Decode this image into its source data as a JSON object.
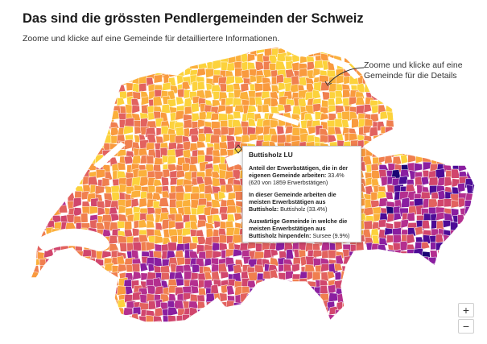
{
  "header": {
    "title": "Das sind die grössten Pendlergemeinden der Schweiz",
    "subtitle": "Zoome und klicke auf eine Gemeinde für detailliertere Informationen."
  },
  "annotation": {
    "line1": "Zoome und klicke auf eine",
    "line2": "Gemeinde für die Details"
  },
  "tooltip": {
    "title": "Buttisholz LU",
    "row1_label": "Anteil der Erwerbstätigen, die in der eigenen Gemeinde arbeiten:",
    "row1_value": " 33.4% (620 von 1859 Erwerbstätigen)",
    "row2_label": "In dieser Gemeinde arbeiten die meisten Erwerbstätigen aus Buttisholz:",
    "row2_value": " Buttisholz (33.4%)",
    "row3_label": "Auswärtige Gemeinde in welche die meisten Erwerbstätigen aus Buttisholz hinpendeln:",
    "row3_value": " Sursee (9.9%)"
  },
  "controls": {
    "zoom_in": "+",
    "zoom_out": "−"
  },
  "colors": {
    "palette": [
      "#fcd23c",
      "#fbb03b",
      "#f99a3e",
      "#f07f4f",
      "#e2625f",
      "#d1466d",
      "#b42f8f",
      "#8a1ea0",
      "#4c0b96",
      "#1a0575"
    ],
    "border": "#ffffff"
  }
}
